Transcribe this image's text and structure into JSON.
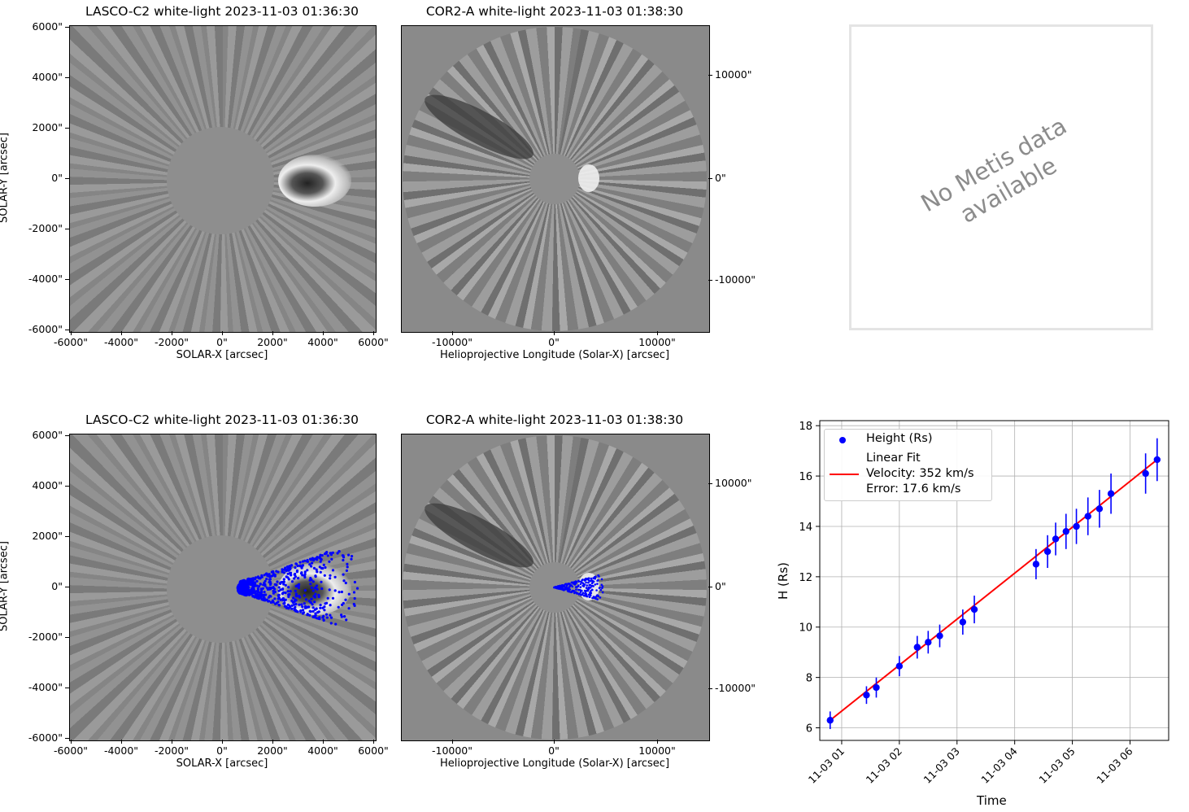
{
  "panels": {
    "lasco_top": {
      "title": "LASCO-C2 white-light 2023-11-03 01:36:30",
      "xlabel": "SOLAR-X [arcsec]",
      "ylabel": "SOLAR-Y [arcsec]",
      "xticks": [
        "-6000\"",
        "-4000\"",
        "-2000\"",
        "0\"",
        "2000\"",
        "4000\"",
        "6000\""
      ],
      "yticks": [
        "6000\"",
        "4000\"",
        "2000\"",
        "0\"",
        "-2000\"",
        "-4000\"",
        "-6000\""
      ]
    },
    "cor2_top": {
      "title": "COR2-A white-light 2023-11-03 01:38:30",
      "xlabel": "Helioprojective Longitude (Solar-X) [arcsec]",
      "xticks": [
        "-10000\"",
        "0\"",
        "10000\""
      ],
      "yticks": [
        "10000\"",
        "0\"",
        "-10000\""
      ]
    },
    "lasco_bottom": {
      "title": "LASCO-C2 white-light 2023-11-03 01:36:30",
      "xlabel": "SOLAR-X [arcsec]",
      "ylabel": "SOLAR-Y [arcsec]",
      "xticks": [
        "-6000\"",
        "-4000\"",
        "-2000\"",
        "0\"",
        "2000\"",
        "4000\"",
        "6000\""
      ],
      "yticks": [
        "6000\"",
        "4000\"",
        "2000\"",
        "0\"",
        "-2000\"",
        "-4000\"",
        "-6000\""
      ]
    },
    "cor2_bottom": {
      "title": "COR2-A white-light 2023-11-03 01:38:30",
      "xlabel": "Helioprojective Longitude (Solar-X) [arcsec]",
      "xticks": [
        "-10000\"",
        "0\"",
        "10000\""
      ],
      "yticks": [
        "10000\"",
        "0\"",
        "-10000\""
      ]
    },
    "metis": {
      "message": "No Metis data available"
    }
  },
  "colors": {
    "points": "#0000ff",
    "fit": "#ff0000",
    "grid": "#b0b0b0",
    "background_gray": "#8a8a8a",
    "no_data_text": "#8c8c8c"
  },
  "chart_data": {
    "type": "scatter",
    "xlabel": "Time",
    "ylabel": "H (Rs)",
    "ylim": [
      5.5,
      18.2
    ],
    "yticks": [
      6,
      8,
      10,
      12,
      14,
      16,
      18
    ],
    "xlim_hours": [
      0.62,
      6.67
    ],
    "xticks": [
      {
        "hour": 1,
        "label": "11-03 01"
      },
      {
        "hour": 2,
        "label": "11-03 02"
      },
      {
        "hour": 3,
        "label": "11-03 03"
      },
      {
        "hour": 4,
        "label": "11-03 04"
      },
      {
        "hour": 5,
        "label": "11-03 05"
      },
      {
        "hour": 6,
        "label": "11-03 06"
      }
    ],
    "series": [
      {
        "name": "Height (Rs)",
        "kind": "points",
        "x_hours": [
          0.8,
          1.43,
          1.6,
          2.0,
          2.31,
          2.5,
          2.7,
          3.1,
          3.3,
          4.37,
          4.57,
          4.71,
          4.89,
          5.07,
          5.27,
          5.47,
          5.67,
          6.27,
          6.47
        ],
        "y": [
          6.3,
          7.3,
          7.6,
          8.45,
          9.2,
          9.4,
          9.65,
          10.2,
          10.7,
          12.5,
          13.0,
          13.5,
          13.8,
          14.0,
          14.4,
          14.7,
          15.3,
          16.1,
          16.65
        ],
        "yerr": [
          0.35,
          0.35,
          0.4,
          0.4,
          0.45,
          0.45,
          0.45,
          0.5,
          0.55,
          0.6,
          0.65,
          0.65,
          0.7,
          0.7,
          0.75,
          0.75,
          0.8,
          0.8,
          0.85
        ]
      },
      {
        "name": "Linear Fit",
        "kind": "line",
        "x_hours": [
          0.8,
          6.47
        ],
        "y": [
          6.3,
          16.65
        ]
      }
    ],
    "legend": {
      "entries": [
        "Height (Rs)",
        "Linear Fit",
        "Velocity: 352 km/s",
        "Error: 17.6 km/s"
      ],
      "location": "upper-left"
    }
  }
}
